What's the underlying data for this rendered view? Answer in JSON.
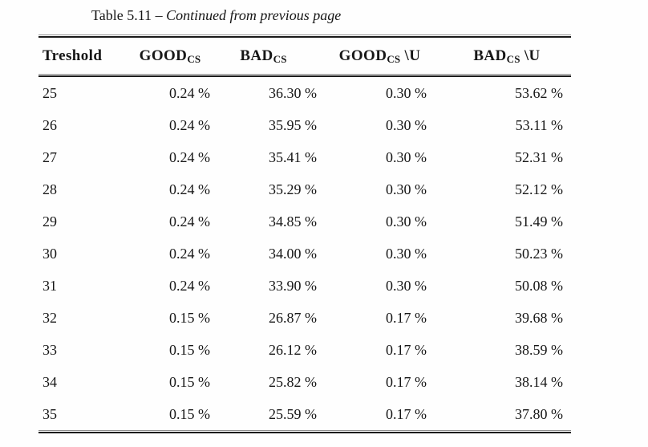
{
  "caption": {
    "label": "Table 5.11",
    "dash": "–",
    "note": "Continued from previous page"
  },
  "table": {
    "columns": [
      {
        "key": "treshold",
        "label": "Treshold",
        "sub": "",
        "suffix": ""
      },
      {
        "key": "good_cs",
        "label": "GOOD",
        "sub": "CS",
        "suffix": ""
      },
      {
        "key": "bad_cs",
        "label": "BAD",
        "sub": "CS",
        "suffix": ""
      },
      {
        "key": "good_cs_u",
        "label": "GOOD",
        "sub": "CS",
        "suffix": " \\U"
      },
      {
        "key": "bad_cs_u",
        "label": "BAD",
        "sub": "CS",
        "suffix": " \\U"
      }
    ],
    "rows": [
      {
        "treshold": "25",
        "good_cs": "0.24 %",
        "bad_cs": "36.30 %",
        "good_cs_u": "0.30 %",
        "bad_cs_u": "53.62 %"
      },
      {
        "treshold": "26",
        "good_cs": "0.24 %",
        "bad_cs": "35.95 %",
        "good_cs_u": "0.30 %",
        "bad_cs_u": "53.11 %"
      },
      {
        "treshold": "27",
        "good_cs": "0.24 %",
        "bad_cs": "35.41 %",
        "good_cs_u": "0.30 %",
        "bad_cs_u": "52.31 %"
      },
      {
        "treshold": "28",
        "good_cs": "0.24 %",
        "bad_cs": "35.29 %",
        "good_cs_u": "0.30 %",
        "bad_cs_u": "52.12 %"
      },
      {
        "treshold": "29",
        "good_cs": "0.24 %",
        "bad_cs": "34.85 %",
        "good_cs_u": "0.30 %",
        "bad_cs_u": "51.49 %"
      },
      {
        "treshold": "30",
        "good_cs": "0.24 %",
        "bad_cs": "34.00 %",
        "good_cs_u": "0.30 %",
        "bad_cs_u": "50.23 %"
      },
      {
        "treshold": "31",
        "good_cs": "0.24 %",
        "bad_cs": "33.90 %",
        "good_cs_u": "0.30 %",
        "bad_cs_u": "50.08 %"
      },
      {
        "treshold": "32",
        "good_cs": "0.15 %",
        "bad_cs": "26.87 %",
        "good_cs_u": "0.17 %",
        "bad_cs_u": "39.68 %"
      },
      {
        "treshold": "33",
        "good_cs": "0.15 %",
        "bad_cs": "26.12 %",
        "good_cs_u": "0.17 %",
        "bad_cs_u": "38.59 %"
      },
      {
        "treshold": "34",
        "good_cs": "0.15 %",
        "bad_cs": "25.82 %",
        "good_cs_u": "0.17 %",
        "bad_cs_u": "38.14 %"
      },
      {
        "treshold": "35",
        "good_cs": "0.15 %",
        "bad_cs": "25.59 %",
        "good_cs_u": "0.17 %",
        "bad_cs_u": "37.80 %"
      }
    ]
  }
}
